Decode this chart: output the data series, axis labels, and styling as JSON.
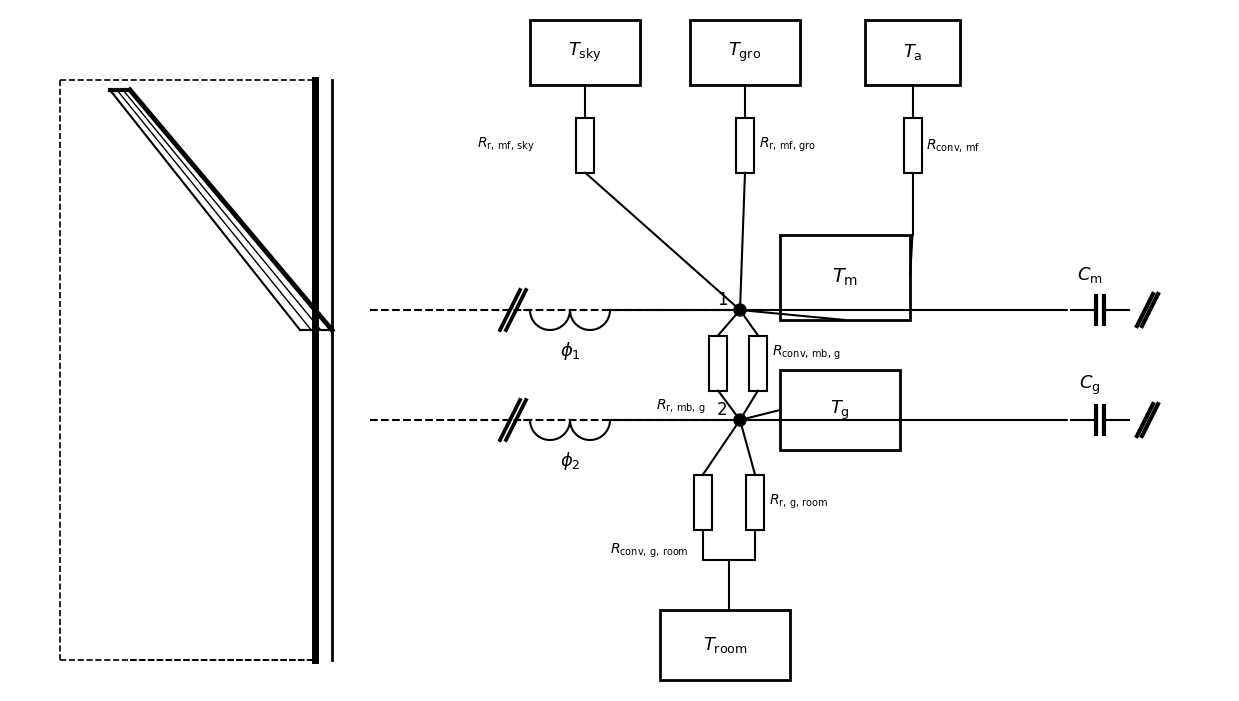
{
  "fig_width": 12.39,
  "fig_height": 7.01,
  "dpi": 100,
  "bg_color": "white",
  "lc": "black",
  "lw": 1.5,
  "xlim": [
    0,
    1239
  ],
  "ylim": [
    0,
    701
  ]
}
